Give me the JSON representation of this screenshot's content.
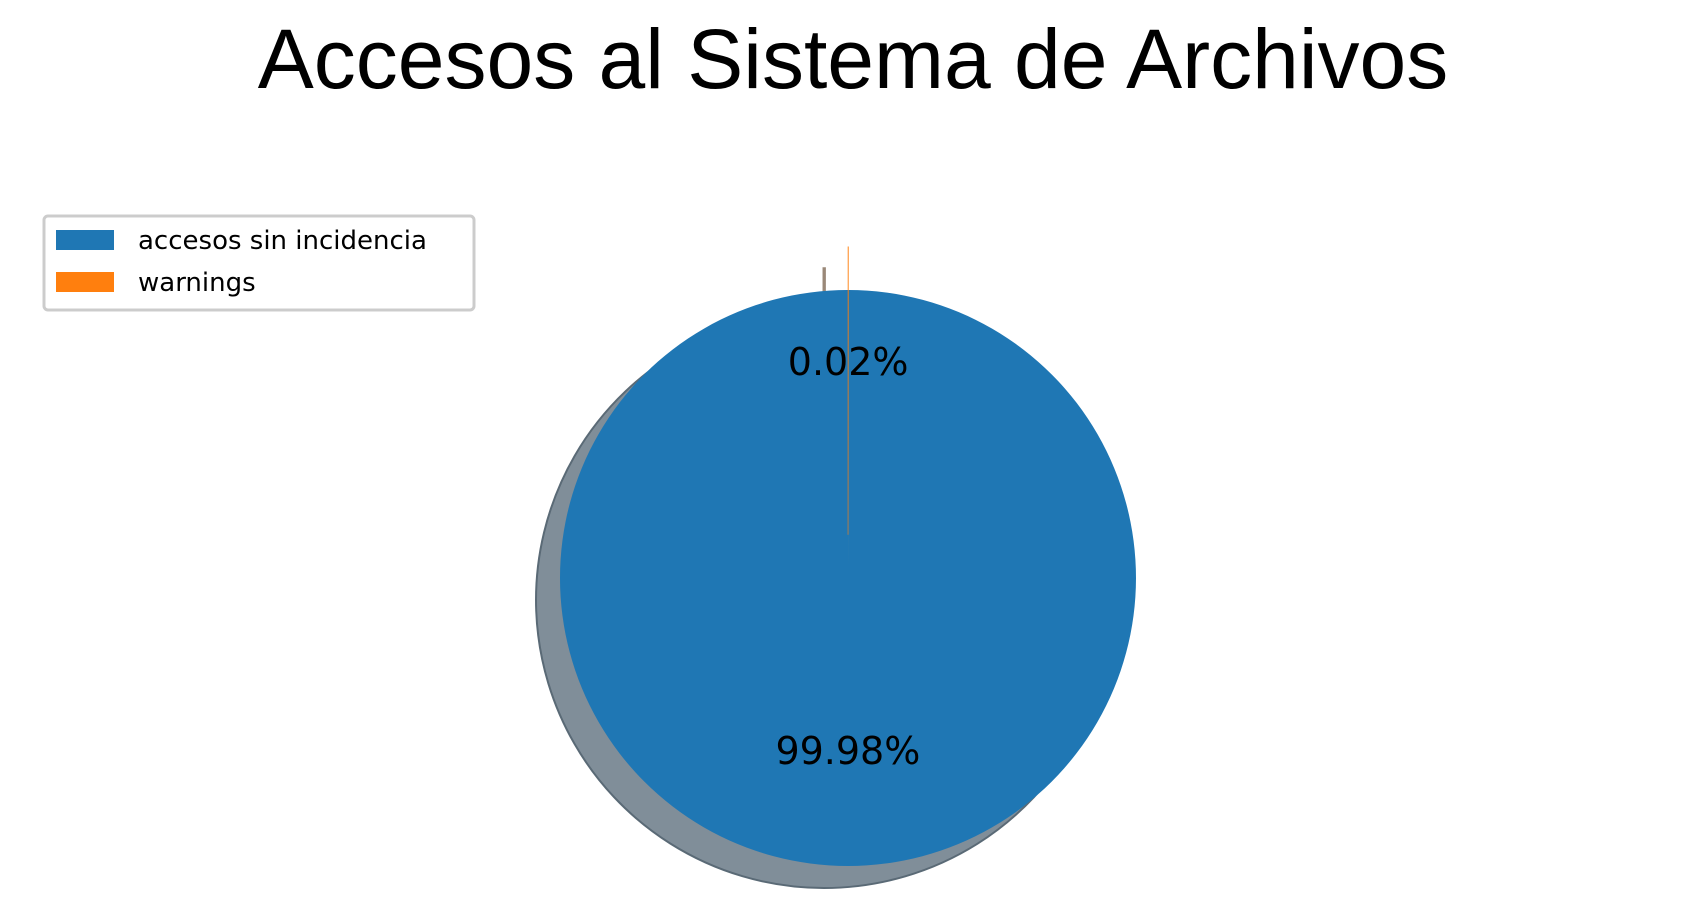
{
  "chart_data": {
    "type": "pie",
    "title": "Accesos al Sistema de Archivos",
    "categories": [
      "accesos sin incidencia",
      "warnings"
    ],
    "values": [
      99.98,
      0.02
    ],
    "labels": [
      "99.98%",
      "0.02%"
    ],
    "colors": [
      "#1f77b4",
      "#ff7f0e"
    ],
    "shadow_color": "#808e99",
    "legend_position": "upper-left",
    "start_angle_deg": 90,
    "exploded_slice": "warnings"
  }
}
